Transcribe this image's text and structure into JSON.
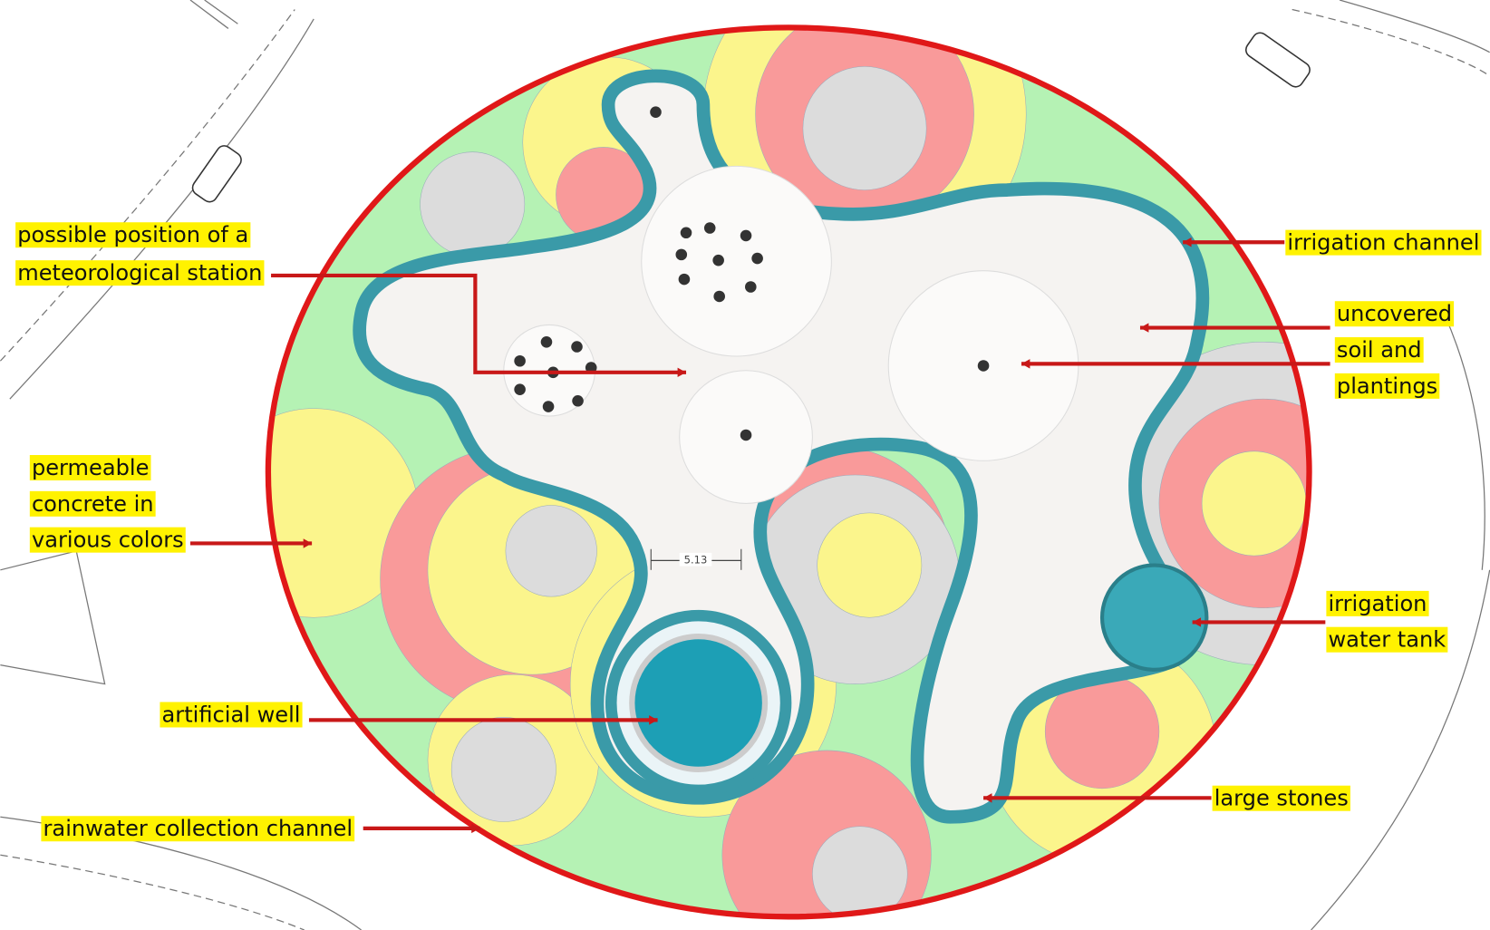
{
  "labels": [
    {
      "lines": [
        "possible position of a",
        "meteorological station"
      ]
    },
    {
      "lines": [
        "permeable",
        "concrete in",
        "various colors"
      ]
    },
    {
      "lines": [
        "artificial well"
      ]
    },
    {
      "lines": [
        "rainwater collection channel"
      ]
    },
    {
      "lines": [
        "irrigation channel"
      ]
    },
    {
      "lines": [
        "uncovered",
        "soil and",
        "plantings"
      ]
    },
    {
      "lines": [
        "irrigation",
        "water tank"
      ]
    },
    {
      "lines": [
        "large stones"
      ]
    }
  ],
  "dimension": "5.13"
}
